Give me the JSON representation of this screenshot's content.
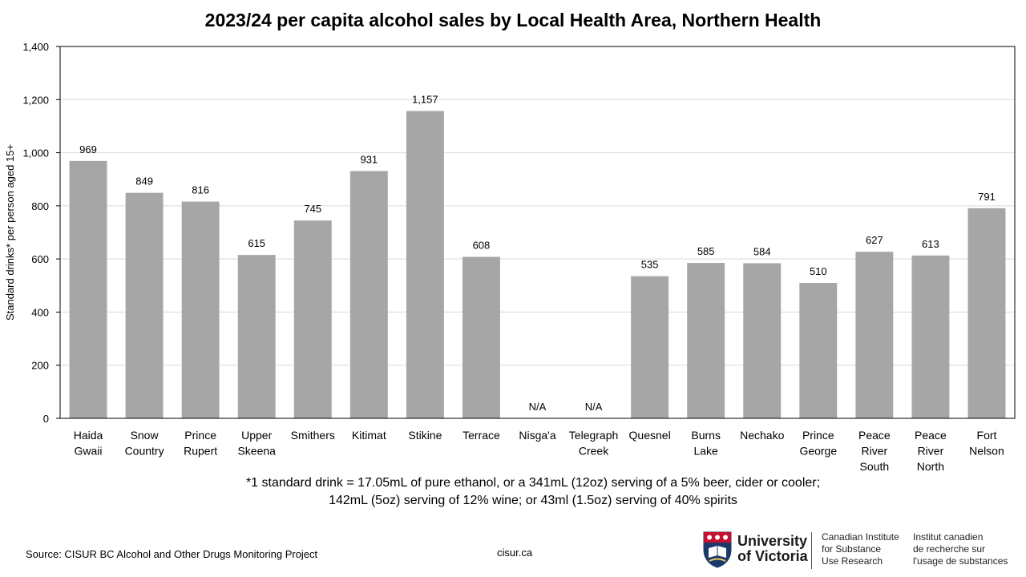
{
  "chart_data": {
    "type": "bar",
    "title": "2023/24 per capita alcohol sales by Local Health Area, Northern Health",
    "ylabel": "Standard drinks* per person aged 15+",
    "xlabel": "",
    "ylim": [
      0,
      1400
    ],
    "yticks": [
      0,
      200,
      400,
      600,
      800,
      1000,
      1200,
      1400
    ],
    "ytick_labels": [
      "0",
      "200",
      "400",
      "600",
      "800",
      "1,000",
      "1,200",
      "1,400"
    ],
    "grid": true,
    "legend": "none",
    "categories": [
      [
        "Haida",
        "Gwaii"
      ],
      [
        "Snow",
        "Country"
      ],
      [
        "Prince",
        "Rupert"
      ],
      [
        "Upper",
        "Skeena"
      ],
      [
        "Smithers"
      ],
      [
        "Kitimat"
      ],
      [
        "Stikine"
      ],
      [
        "Terrace"
      ],
      [
        "Nisga'a"
      ],
      [
        "Telegraph",
        "Creek"
      ],
      [
        "Quesnel"
      ],
      [
        "Burns",
        "Lake"
      ],
      [
        "Nechako"
      ],
      [
        "Prince",
        "George"
      ],
      [
        "Peace",
        "River",
        "South"
      ],
      [
        "Peace",
        "River",
        "North"
      ],
      [
        "Fort",
        "Nelson"
      ]
    ],
    "values": [
      969,
      849,
      816,
      615,
      745,
      931,
      1157,
      608,
      null,
      null,
      535,
      585,
      584,
      510,
      627,
      613,
      791
    ],
    "data_labels": [
      "969",
      "849",
      "816",
      "615",
      "745",
      "931",
      "1,157",
      "608",
      "N/A",
      "N/A",
      "535",
      "585",
      "584",
      "510",
      "627",
      "613",
      "791"
    ],
    "bar_color": "#a6a6a6",
    "grid_color": "#d9d9d9",
    "axis_color": "#000000"
  },
  "footnote": {
    "line1": "*1 standard drink = 17.05mL of pure ethanol, or a 341mL (12oz) serving of a 5% beer, cider or cooler;",
    "line2": "142mL (5oz) serving of 12% wine; or 43ml (1.5oz) serving of 40% spirits"
  },
  "source": "Source: CISUR BC Alcohol and Other Drugs Monitoring Project",
  "site": "cisur.ca",
  "logo": {
    "university_lines": [
      "University",
      "of Victoria"
    ],
    "institute_en_lines": [
      "Canadian Institute",
      "for Substance",
      "Use Research"
    ],
    "institute_fr_lines": [
      "Institut canadien",
      "de recherche sur",
      "l'usage de substances"
    ],
    "crest_colors": {
      "blue": "#1b3a6b",
      "red": "#c8102e",
      "gold": "#f2c75c"
    }
  }
}
